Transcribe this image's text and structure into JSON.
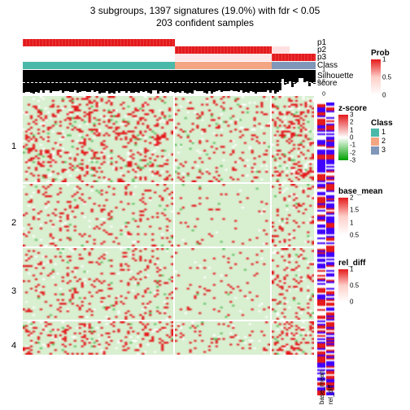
{
  "title": "3 subgroups, 1397 signatures (19.0%) with fdr < 0.05",
  "subtitle": "203 confident samples",
  "layout": {
    "columns": [
      0.52,
      0.33,
      0.15
    ],
    "rows": [
      0.3,
      0.22,
      0.25,
      0.12
    ],
    "row_labels": [
      "1",
      "2",
      "3",
      "4"
    ]
  },
  "annotation_tracks": {
    "p1": {
      "label": "p1",
      "segs": [
        [
          "#e41a1c",
          0.52
        ],
        [
          "#ffffff",
          0.33
        ],
        [
          "#ffffff",
          0.15
        ]
      ]
    },
    "p2": {
      "label": "p2",
      "segs": [
        [
          "#ffffff",
          0.52
        ],
        [
          "#e41a1c",
          0.33
        ],
        [
          "#ffe0e0",
          0.06
        ],
        [
          "#ffffff",
          0.09
        ]
      ]
    },
    "p3": {
      "label": "p3",
      "segs": [
        [
          "#ffffff",
          0.52
        ],
        [
          "#ffe8e8",
          0.33
        ],
        [
          "#e41a1c",
          0.15
        ]
      ]
    },
    "class": {
      "label": "Class",
      "segs": [
        [
          "#4bb9a9",
          0.52
        ],
        [
          "#f4a582",
          0.33
        ],
        [
          "#8097b9",
          0.15
        ]
      ]
    },
    "silhouette": {
      "label": "Silhouette\nscore",
      "axis": [
        0,
        0.5,
        1
      ],
      "dash_at": 0.5
    }
  },
  "heatmap_style": {
    "bg": "#d8efd0",
    "noise_colors": [
      "#e41a1c",
      "#ffffff",
      "#a0d090",
      "#60c060"
    ],
    "density": {
      "col0": 0.3,
      "col1": 0.14,
      "col2": 0.4
    },
    "row_tint": [
      1.0,
      0.5,
      0.6,
      0.9
    ]
  },
  "side_annotations": {
    "base_mean": {
      "label": "base_mean",
      "grad": [
        "#ffffff",
        "#e41a1c",
        "#4000ff"
      ],
      "noise": 0.5
    },
    "rel_diff": {
      "label": "rel_diff",
      "grad": [
        "#ffffff",
        "#e41a1c",
        "#4000ff"
      ],
      "noise": 0.5
    }
  },
  "legends": {
    "zscore": {
      "title": "z-score",
      "grad": [
        "#00a000",
        "#ffffff",
        "#e41a1c"
      ],
      "ticks": [
        "3",
        "2",
        "1",
        "0",
        "-1",
        "-2",
        "-3"
      ]
    },
    "base_mean": {
      "title": "base_mean",
      "grad": [
        "#ffffff",
        "#fecfc9",
        "#e41a1c"
      ],
      "ticks": [
        "2",
        "1.5",
        "1",
        "0.5"
      ]
    },
    "rel_diff": {
      "title": "rel_diff",
      "grad": [
        "#ffffff",
        "#fecfc9",
        "#e41a1c"
      ],
      "ticks": [
        "1",
        "0.5",
        "0"
      ]
    },
    "prob": {
      "title": "Prob",
      "grad": [
        "#ffffff",
        "#fecfc9",
        "#e41a1c"
      ],
      "ticks": [
        "1",
        "0.5",
        "0"
      ]
    },
    "class": {
      "title": "Class",
      "items": [
        [
          "1",
          "#4bb9a9"
        ],
        [
          "2",
          "#f4a582"
        ],
        [
          "3",
          "#8097b9"
        ]
      ]
    }
  }
}
